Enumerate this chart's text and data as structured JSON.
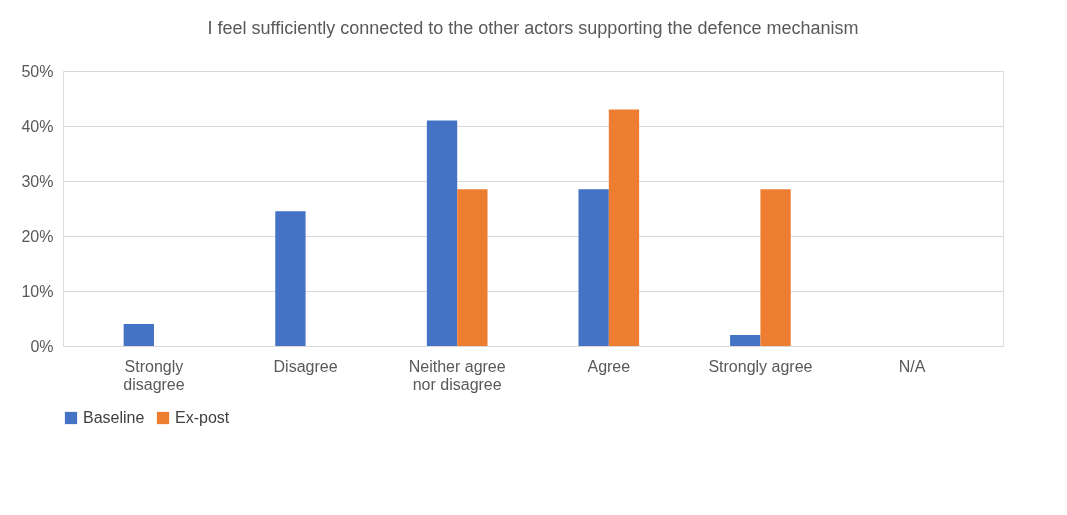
{
  "chart_data": {
    "type": "bar",
    "title": "I feel sufficiently connected to the other actors supporting the defence mechanism",
    "categories": [
      "Strongly disagree",
      "Disagree",
      "Neither agree nor disagree",
      "Agree",
      "Strongly agree",
      "N/A"
    ],
    "series": [
      {
        "name": "Baseline",
        "color": "#4472c4",
        "values": [
          4,
          24.5,
          41,
          28.5,
          2,
          0
        ]
      },
      {
        "name": "Ex-post",
        "color": "#ed7d31",
        "values": [
          0,
          0,
          28.5,
          43,
          28.5,
          0
        ]
      }
    ],
    "ylim": [
      0,
      50
    ],
    "yticks": [
      {
        "value": 0,
        "label": "0%"
      },
      {
        "value": 10,
        "label": "10%"
      },
      {
        "value": 20,
        "label": "20%"
      },
      {
        "value": 30,
        "label": "30%"
      },
      {
        "value": 40,
        "label": "40%"
      },
      {
        "value": 50,
        "label": "50%"
      }
    ],
    "grid": "y",
    "legend": "bottom"
  }
}
